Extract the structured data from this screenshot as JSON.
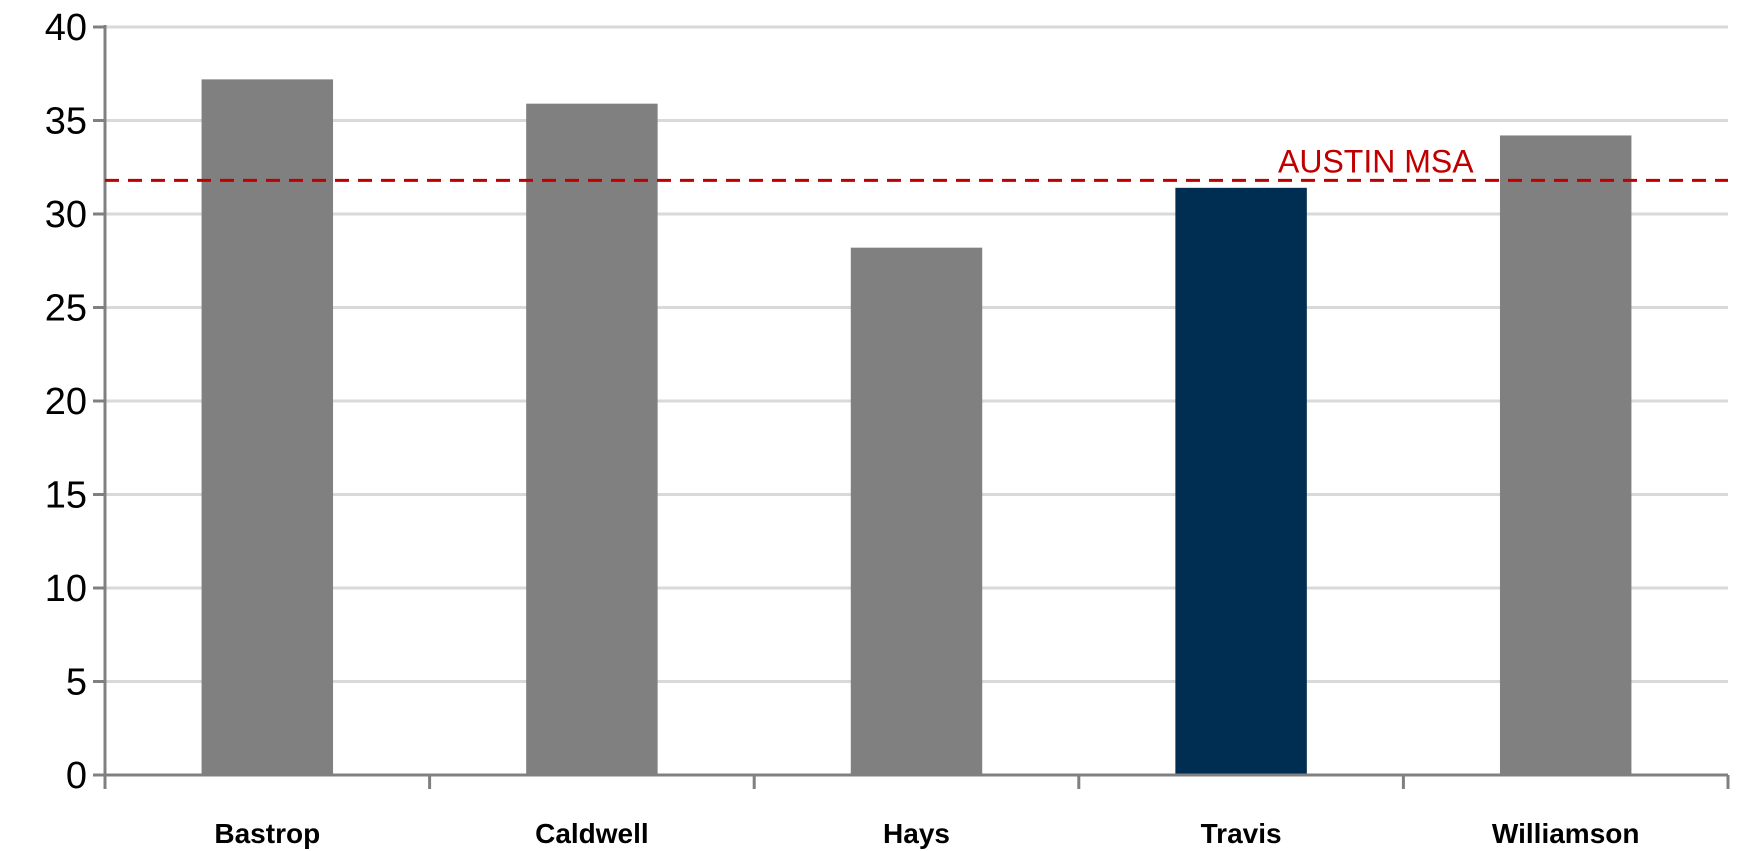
{
  "chart_data": {
    "type": "bar",
    "categories": [
      "Bastrop",
      "Caldwell",
      "Hays",
      "Travis",
      "Williamson"
    ],
    "values": [
      37.2,
      35.9,
      28.2,
      31.4,
      34.2
    ],
    "bar_colors": [
      "#808080",
      "#808080",
      "#808080",
      "#002D52",
      "#808080"
    ],
    "ylim": [
      0,
      40
    ],
    "yticks": [
      0,
      5,
      10,
      15,
      20,
      25,
      30,
      35,
      40
    ],
    "ytick_labels": [
      "0",
      "5",
      "10",
      "15",
      "20",
      "25",
      "30",
      "35",
      "40"
    ],
    "grid": true,
    "title": "",
    "xlabel": "",
    "ylabel": "",
    "reference_line": {
      "label": "AUSTIN MSA",
      "value": 31.8,
      "color": "#C00000",
      "style": "dashed"
    }
  }
}
